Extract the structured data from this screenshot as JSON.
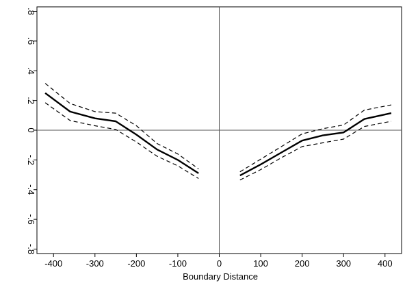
{
  "chart_data": {
    "type": "line",
    "title": "",
    "xlabel": "Boundary Distance",
    "ylabel": "",
    "xlim": [
      -440,
      440
    ],
    "ylim": [
      -0.83,
      0.83
    ],
    "xticks": [
      -400,
      -300,
      -200,
      -100,
      0,
      100,
      200,
      300,
      400
    ],
    "xtick_labels": [
      "-400",
      "-300",
      "-200",
      "-100",
      "0",
      "100",
      "200",
      "300",
      "400"
    ],
    "yticks": [
      0.8,
      0.6,
      0.4,
      0.2,
      0,
      -0.2,
      -0.4,
      -0.6,
      -0.8
    ],
    "ytick_labels": [
      ".8",
      ".6",
      ".4",
      ".2",
      "0",
      "-.2",
      "-.4",
      "-.6",
      "-.8"
    ],
    "reference_lines": {
      "x": 0,
      "y": 0
    },
    "grid": false,
    "legend": "none",
    "series": [
      {
        "segment": "left",
        "style": "solid",
        "x": [
          -420,
          -360,
          -300,
          -250,
          -200,
          -150,
          -100,
          -50
        ],
        "y": [
          0.25,
          0.125,
          0.08,
          0.06,
          -0.03,
          -0.13,
          -0.2,
          -0.29
        ]
      },
      {
        "segment": "left",
        "style": "dashed",
        "x": [
          -420,
          -360,
          -300,
          -250,
          -200,
          -150,
          -100,
          -50
        ],
        "y": [
          0.315,
          0.18,
          0.125,
          0.115,
          0.03,
          -0.09,
          -0.16,
          -0.26
        ]
      },
      {
        "segment": "left",
        "style": "dashed",
        "x": [
          -420,
          -360,
          -300,
          -250,
          -200,
          -150,
          -100,
          -50
        ],
        "y": [
          0.185,
          0.065,
          0.03,
          0.005,
          -0.08,
          -0.175,
          -0.24,
          -0.325
        ]
      },
      {
        "segment": "right",
        "style": "solid",
        "x": [
          50,
          100,
          150,
          200,
          250,
          300,
          350,
          415
        ],
        "y": [
          -0.305,
          -0.23,
          -0.15,
          -0.07,
          -0.035,
          -0.015,
          0.075,
          0.115
        ]
      },
      {
        "segment": "right",
        "style": "dashed",
        "x": [
          50,
          100,
          150,
          200,
          250,
          300,
          350,
          415
        ],
        "y": [
          -0.28,
          -0.195,
          -0.11,
          -0.025,
          0.01,
          0.035,
          0.135,
          0.17
        ]
      },
      {
        "segment": "right",
        "style": "dashed",
        "x": [
          50,
          100,
          150,
          200,
          250,
          300,
          350,
          415
        ],
        "y": [
          -0.335,
          -0.265,
          -0.185,
          -0.11,
          -0.085,
          -0.06,
          0.025,
          0.06
        ]
      }
    ]
  }
}
